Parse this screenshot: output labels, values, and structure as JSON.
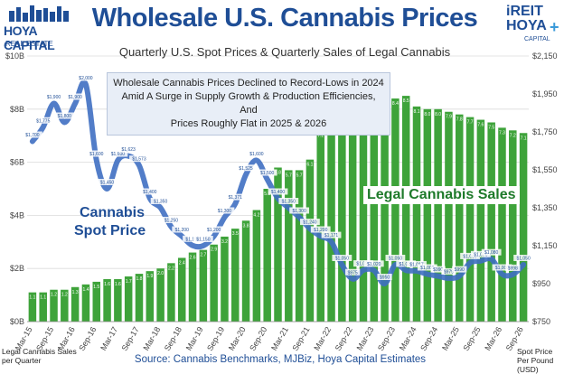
{
  "header": {
    "title": "Wholesale U.S. Cannabis Prices",
    "subtitle": "Quarterly U.S. Spot Prices & Quarterly Sales of Legal Cannabis"
  },
  "logos": {
    "left_line1": "HOYA CAPITAL",
    "left_line2": "REAL ESTATE",
    "right_line1": "iREIT",
    "right_line2": "HOYA",
    "right_line3": "CAPITAL"
  },
  "annotation": {
    "line1": "Wholesale Cannabis Prices Declined to Record-Lows in 2024",
    "line2": "Amid A Surge in Supply Growth & Production Efficiencies, And",
    "line3": "Prices Roughly Flat in 2025 & 2026"
  },
  "labels": {
    "sales": "Legal Cannabis Sales",
    "spot_line1": "Cannabis",
    "spot_line2": "Spot Price"
  },
  "footer": {
    "source": "Source: Cannabis Benchmarks, MJBiz, Hoya Capital Estimates",
    "left_axis_line1": "Legal Cannabis Sales",
    "left_axis_line2": "per Quarter",
    "right_axis_line1": "Spot Price",
    "right_axis_line2": "Per Pound (USD)"
  },
  "colors": {
    "bar": "#3ea33a",
    "line": "#3f6fc2",
    "title": "#1f4e96"
  },
  "chart_data": {
    "type": "bar",
    "categories": [
      "Mar-15",
      "Jun-15",
      "Sep-15",
      "Dec-15",
      "Mar-16",
      "Jun-16",
      "Sep-16",
      "Dec-16",
      "Mar-17",
      "Jun-17",
      "Sep-17",
      "Dec-17",
      "Mar-18",
      "Jun-18",
      "Sep-18",
      "Dec-18",
      "Mar-19",
      "Jun-19",
      "Sep-19",
      "Dec-19",
      "Mar-20",
      "Jun-20",
      "Sep-20",
      "Dec-20",
      "Mar-21",
      "Jun-21",
      "Sep-21",
      "Dec-21",
      "Mar-22",
      "Jun-22",
      "Sep-22",
      "Dec-22",
      "Mar-23",
      "Jun-23",
      "Sep-23",
      "Dec-23",
      "Mar-24",
      "Jun-24",
      "Sep-24",
      "Dec-24",
      "Mar-25",
      "Jun-25",
      "Sep-25",
      "Dec-25",
      "Mar-26",
      "Jun-26",
      "Sep-26"
    ],
    "x_tick_labels": [
      "Mar-15",
      "Sep-15",
      "Mar-16",
      "Sep-16",
      "Mar-17",
      "Sep-17",
      "Mar-18",
      "Sep-18",
      "Mar-19",
      "Sep-19",
      "Mar-20",
      "Sep-20",
      "Mar-21",
      "Sep-21",
      "Mar-22",
      "Sep-22",
      "Mar-23",
      "Sep-23",
      "Mar-24",
      "Sep-24",
      "Mar-25",
      "Sep-25",
      "Mar-26",
      "Sep-26"
    ],
    "series": [
      {
        "axis": "left",
        "values": [
          1.1,
          1.1,
          1.2,
          1.2,
          1.3,
          1.4,
          1.5,
          1.6,
          1.6,
          1.7,
          1.8,
          1.9,
          2.0,
          2.2,
          2.4,
          2.6,
          2.7,
          2.9,
          3.2,
          3.5,
          3.8,
          4.2,
          5.0,
          5.8,
          5.7,
          5.7,
          6.1,
          7.2,
          7.5,
          7.7,
          7.9,
          8.1,
          8.3,
          8.2,
          8.4,
          8.5,
          8.1,
          8.0,
          8.0,
          7.9,
          7.8,
          7.7,
          7.6,
          7.5,
          7.3,
          7.2,
          7.1
        ],
        "value_labels": [
          "1.1",
          "1.1",
          "1.2",
          "1.2",
          "1.3",
          "1.4",
          "1.5",
          "1.6",
          "1.6",
          "1.7",
          "1.8",
          "1.9",
          "2.0",
          "2.2",
          "2.4",
          "2.6",
          "2.7",
          "2.9",
          "3.2",
          "3.5",
          "3.8",
          "4.2",
          "5.0",
          "5.8",
          "5.7",
          "5.7",
          "6.1",
          "7.2",
          "7.5",
          "7.7",
          "7.9",
          "8.1",
          "8.3",
          "8.2",
          "8.4",
          "8.5",
          "8.1",
          "8.0",
          "8.0",
          "7.9",
          "7.8",
          "7.7",
          "7.6",
          "7.5",
          "7.3",
          "7.2",
          "7.1"
        ]
      },
      {
        "axis": "right",
        "type": "line",
        "values": [
          1700,
          1775,
          1900,
          1800,
          1900,
          2000,
          1600,
          1450,
          1600,
          1623,
          1573,
          1400,
          1350,
          1250,
          1200,
          1151,
          1150,
          1200,
          1300,
          1371,
          1525,
          1600,
          1500,
          1400,
          1350,
          1300,
          1240,
          1200,
          1171,
          1050,
          975,
          1021,
          1020,
          950,
          1050,
          1020,
          1017,
          1000,
          990,
          979,
          990,
          1060,
          1070,
          1080,
          1000,
          998,
          1050
        ],
        "value_labels": [
          "$1,700",
          "$1,775",
          "$1,900",
          "$1,800",
          "$1,900",
          "$2,000",
          "$1,600",
          "$1,450",
          "$1,600",
          "$1,623",
          "$1,573",
          "$1,400",
          "$1,350",
          "$1,250",
          "$1,200",
          "$1,151",
          "$1,150",
          "$1,200",
          "$1,300",
          "$1,371",
          "$1,525",
          "$1,600",
          "$1,500",
          "$1,400",
          "$1,350",
          "$1,300",
          "$1,240",
          "$1,200",
          "$1,171",
          "$1,050",
          "$975",
          "$1,021",
          "$1,020",
          "$950",
          "$1,050",
          "$1,020",
          "$1,017",
          "$1,000",
          "$990",
          "$979",
          "$990",
          "$1,060",
          "$1,070",
          "$1,080",
          "$1,000",
          "$998",
          "$1,050"
        ]
      }
    ],
    "left_axis": {
      "range": [
        0,
        10
      ],
      "ticks": [
        0,
        2,
        4,
        6,
        8,
        10
      ],
      "tick_labels": [
        "$0B",
        "$2B",
        "$4B",
        "$6B",
        "$8B",
        "$10B"
      ]
    },
    "right_axis": {
      "range": [
        750,
        2150
      ],
      "ticks": [
        750,
        950,
        1150,
        1350,
        1550,
        1750,
        1950,
        2150
      ],
      "tick_labels": [
        "$750",
        "$950",
        "$1,150",
        "$1,350",
        "$1,550",
        "$1,750",
        "$1,950",
        "$2,150"
      ]
    },
    "grid": true
  }
}
